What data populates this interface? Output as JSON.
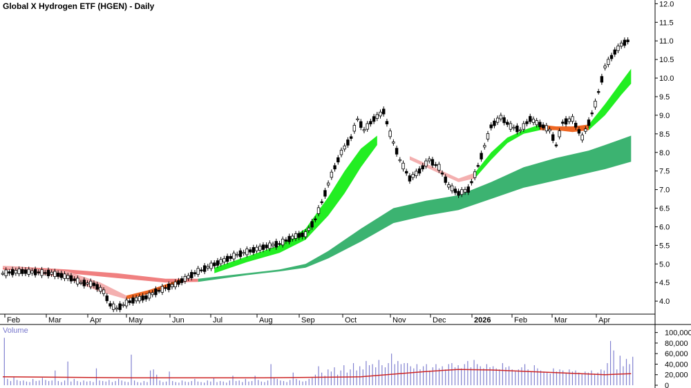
{
  "chart_data": {
    "type": "candlestick",
    "title": "Global X Hydrogen ETF (HGEN) - Daily",
    "price_axis": {
      "ticks": [
        "12.0",
        "11.5",
        "11.0",
        "10.5",
        "10.0",
        "9.5",
        "9.0",
        "8.5",
        "8.0",
        "7.5",
        "7.0",
        "6.5",
        "6.0",
        "5.5",
        "5.0",
        "4.5",
        "4.0"
      ],
      "range": [
        3.65,
        12.1
      ]
    },
    "months": [
      "Feb",
      "Mar",
      "Apr",
      "May",
      "Jun",
      "Jul",
      "Aug",
      "Sep",
      "Oct",
      "Nov",
      "Dec",
      "2026",
      "Feb",
      "Mar",
      "Apr"
    ],
    "close_path": [
      [
        0,
        4.75
      ],
      [
        5,
        4.8
      ],
      [
        10,
        4.78
      ],
      [
        15,
        4.75
      ],
      [
        20,
        4.65
      ],
      [
        24,
        4.5
      ],
      [
        28,
        4.45
      ],
      [
        31,
        4.25
      ],
      [
        33,
        3.9
      ],
      [
        35,
        3.8
      ],
      [
        38,
        3.95
      ],
      [
        41,
        4.05
      ],
      [
        44,
        4.1
      ],
      [
        47,
        4.25
      ],
      [
        50,
        4.35
      ],
      [
        53,
        4.45
      ],
      [
        56,
        4.6
      ],
      [
        60,
        4.8
      ],
      [
        64,
        4.95
      ],
      [
        68,
        5.1
      ],
      [
        72,
        5.25
      ],
      [
        76,
        5.35
      ],
      [
        80,
        5.45
      ],
      [
        85,
        5.55
      ],
      [
        90,
        5.75
      ],
      [
        93,
        5.8
      ],
      [
        96,
        6.2
      ],
      [
        99,
        6.9
      ],
      [
        101,
        7.4
      ],
      [
        104,
        8.0
      ],
      [
        107,
        8.4
      ],
      [
        109,
        8.9
      ],
      [
        111,
        8.6
      ],
      [
        114,
        8.9
      ],
      [
        117,
        9.1
      ],
      [
        119,
        8.5
      ],
      [
        122,
        7.8
      ],
      [
        125,
        7.3
      ],
      [
        128,
        7.5
      ],
      [
        131,
        7.8
      ],
      [
        134,
        7.6
      ],
      [
        137,
        7.1
      ],
      [
        140,
        6.9
      ],
      [
        143,
        7.0
      ],
      [
        145,
        7.4
      ],
      [
        147,
        7.9
      ],
      [
        150,
        8.7
      ],
      [
        153,
        8.95
      ],
      [
        156,
        8.7
      ],
      [
        159,
        8.6
      ],
      [
        162,
        8.9
      ],
      [
        165,
        8.75
      ],
      [
        168,
        8.6
      ],
      [
        170,
        8.2
      ],
      [
        172,
        8.8
      ],
      [
        175,
        8.9
      ],
      [
        178,
        8.4
      ],
      [
        180,
        8.8
      ],
      [
        182,
        9.3
      ],
      [
        185,
        10.3
      ],
      [
        188,
        10.7
      ],
      [
        190,
        10.9
      ],
      [
        192,
        11.0
      ],
      [
        193,
        11.6
      ]
    ],
    "moving_average_bands": [
      {
        "name": "short",
        "values": [
          [
            0,
            4.95,
            4.9
          ],
          [
            20,
            4.8,
            4.6
          ],
          [
            30,
            4.5,
            4.25
          ],
          [
            38,
            4.15,
            4.05
          ],
          [
            45,
            4.3,
            4.2
          ],
          [
            55,
            4.6,
            4.5
          ],
          [
            65,
            4.9,
            4.75
          ],
          [
            75,
            5.2,
            5.05
          ],
          [
            85,
            5.5,
            5.3
          ],
          [
            93,
            5.95,
            5.65
          ],
          [
            100,
            6.8,
            6.3
          ],
          [
            105,
            7.5,
            6.9
          ],
          [
            110,
            8.1,
            7.6
          ],
          [
            115,
            8.45,
            8.2
          ],
          [
            120,
            8.3,
            8.15
          ],
          [
            125,
            7.9,
            7.8
          ],
          [
            130,
            7.7,
            7.6
          ],
          [
            135,
            7.5,
            7.4
          ],
          [
            140,
            7.3,
            7.2
          ],
          [
            145,
            7.45,
            7.3
          ],
          [
            150,
            8.0,
            7.8
          ],
          [
            155,
            8.4,
            8.25
          ],
          [
            160,
            8.6,
            8.5
          ],
          [
            165,
            8.75,
            8.6
          ],
          [
            170,
            8.7,
            8.6
          ],
          [
            175,
            8.7,
            8.55
          ],
          [
            180,
            8.75,
            8.6
          ],
          [
            185,
            9.3,
            9.0
          ],
          [
            190,
            9.9,
            9.55
          ],
          [
            193,
            10.25,
            9.85
          ]
        ]
      },
      {
        "name": "long",
        "values": [
          [
            0,
            4.95,
            4.85
          ],
          [
            20,
            4.85,
            4.75
          ],
          [
            35,
            4.75,
            4.62
          ],
          [
            50,
            4.6,
            4.5
          ],
          [
            60,
            4.6,
            4.52
          ],
          [
            75,
            4.75,
            4.7
          ],
          [
            85,
            4.85,
            4.8
          ],
          [
            93,
            5.0,
            4.9
          ],
          [
            100,
            5.35,
            5.15
          ],
          [
            110,
            5.95,
            5.6
          ],
          [
            120,
            6.5,
            6.1
          ],
          [
            130,
            6.7,
            6.3
          ],
          [
            140,
            6.85,
            6.45
          ],
          [
            150,
            7.2,
            6.75
          ],
          [
            160,
            7.6,
            7.05
          ],
          [
            170,
            7.85,
            7.25
          ],
          [
            180,
            8.05,
            7.45
          ],
          [
            185,
            8.2,
            7.55
          ],
          [
            193,
            8.45,
            7.75
          ]
        ]
      }
    ],
    "volume": {
      "label": "Volume",
      "ticks": [
        "100,000",
        "80,000",
        "60,000",
        "40,000",
        "20,000",
        "0"
      ],
      "range": [
        0,
        110000
      ],
      "values": [
        90000,
        12000,
        8000,
        15000,
        10000,
        8000,
        9000,
        7000,
        6000,
        12000,
        8000,
        9000,
        14000,
        10000,
        8000,
        9000,
        28000,
        8000,
        6000,
        9000,
        45000,
        7000,
        12000,
        8000,
        6000,
        9000,
        7000,
        8000,
        6000,
        32000,
        9000,
        8000,
        7000,
        10000,
        6000,
        8000,
        12000,
        9000,
        7000,
        6000,
        58000,
        9000,
        6000,
        5000,
        8000,
        6000,
        28000,
        30000,
        20000,
        9000,
        6000,
        7000,
        26000,
        8000,
        6000,
        5000,
        9000,
        7000,
        6000,
        8000,
        12000,
        7000,
        6000,
        5000,
        9000,
        7000,
        14000,
        6000,
        8000,
        7000,
        5000,
        9000,
        18000,
        8000,
        9000,
        6000,
        12000,
        7000,
        8000,
        18000,
        10000,
        7000,
        6000,
        9000,
        40000,
        14000,
        12000,
        9000,
        8000,
        6000,
        10000,
        24000,
        12000,
        9000,
        7000,
        8000,
        12000,
        14000,
        20000,
        36000,
        24000,
        18000,
        30000,
        26000,
        34000,
        20000,
        28000,
        38000,
        24000,
        30000,
        42000,
        28000,
        36000,
        30000,
        46000,
        38000,
        40000,
        34000,
        48000,
        38000,
        34000,
        42000,
        60000,
        40000,
        46000,
        40000,
        42000,
        42000,
        36000,
        32000,
        40000,
        30000,
        36000,
        40000,
        28000,
        34000,
        40000,
        32000,
        36000,
        30000,
        40000,
        42000,
        34000,
        38000,
        32000,
        40000,
        46000,
        34000,
        48000,
        40000,
        36000,
        32000,
        40000,
        34000,
        36000,
        32000,
        30000,
        42000,
        34000,
        36000,
        30000,
        26000,
        30000,
        34000,
        40000,
        30000,
        26000,
        38000,
        32000,
        28000,
        26000,
        24000,
        22000,
        32000,
        26000,
        30000,
        28000,
        24000,
        30000,
        26000,
        28000,
        24000,
        22000,
        26000,
        24000,
        28000,
        22000,
        24000,
        30000,
        28000,
        42000,
        84000,
        66000,
        30000,
        56000,
        36000,
        50000,
        40000,
        54000
      ],
      "ma": [
        [
          0,
          16000
        ],
        [
          40,
          14000
        ],
        [
          80,
          14000
        ],
        [
          110,
          16000
        ],
        [
          130,
          26000
        ],
        [
          140,
          30000
        ],
        [
          150,
          29000
        ],
        [
          170,
          24000
        ],
        [
          185,
          20000
        ],
        [
          193,
          22000
        ]
      ]
    }
  },
  "colors": {
    "up_band": "#22ee22",
    "down_band": "#ee6622",
    "long_band": "#3cb371",
    "long_band_top": "#f08080",
    "short_band_light": "#f4b0b0",
    "volume_bar": "#8080d0",
    "volume_ma": "#cc2222"
  }
}
